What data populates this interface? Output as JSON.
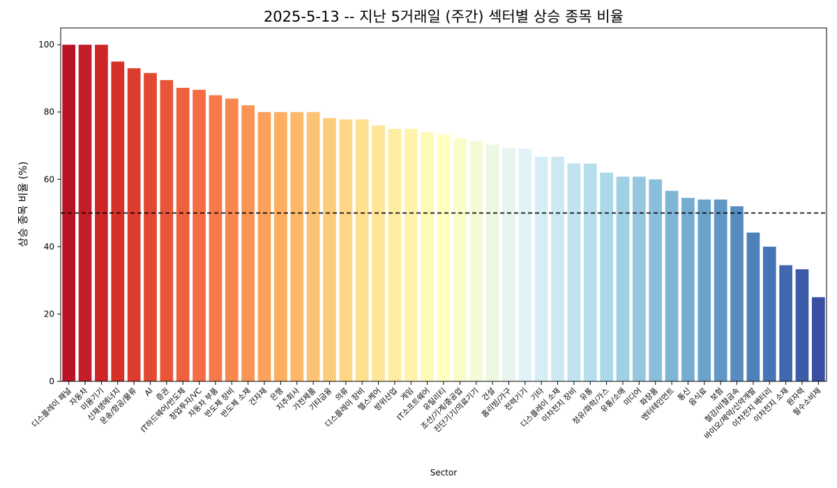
{
  "chart_data": {
    "type": "bar",
    "title": "2025-5-13 -- 지난 5거래일 (주간) 섹터별 상승 종목 비율",
    "xlabel": "Sector",
    "ylabel": "상승 종목 비율 (%)",
    "ylim": [
      0,
      105
    ],
    "yticks": [
      "0",
      "20",
      "40",
      "60",
      "80",
      "100"
    ],
    "reference_line": {
      "y": 50,
      "style": "dashed",
      "color": "#000000"
    },
    "grid": false,
    "colormap": "RdYlBu",
    "categories": [
      "디스플레이 패널",
      "자동차",
      "미용기기",
      "신재생에너지",
      "운송/항공/물류",
      "AI",
      "증권",
      "IT하드웨어/반도체",
      "창업투자/VC",
      "자동차 부품",
      "반도체 장비",
      "반도체 소재",
      "건자재",
      "은행",
      "지주회사",
      "가전제품",
      "기타금융",
      "의류",
      "디스플레이 장비",
      "헬스케어",
      "방위산업",
      "게임",
      "IT소프트웨어",
      "유틸리티",
      "조선/기계/중공업",
      "진단기기/의료기기",
      "건설",
      "홈리빙/가구",
      "전력기기",
      "기타",
      "디스플레이 소재",
      "이차전지 장비",
      "유통",
      "정유/화학/가스",
      "유통/소매",
      "미디어",
      "화장품",
      "엔터테인먼트",
      "통신",
      "음식료",
      "보험",
      "철강/비철금속",
      "바이오/제약/신약개발",
      "이차전지 배터리",
      "이차전지 소재",
      "원자력",
      "필수소비재"
    ],
    "values": [
      100,
      100,
      100,
      95,
      93,
      91.6,
      89.5,
      87.2,
      86.6,
      85,
      84,
      82,
      80,
      80,
      80,
      80,
      78.2,
      77.8,
      77.8,
      76,
      75,
      75,
      74,
      73.4,
      72.2,
      71.4,
      70.3,
      69.3,
      69.1,
      66.7,
      66.7,
      64.7,
      64.7,
      62,
      60.8,
      60.8,
      60,
      56.6,
      54.5,
      54,
      54,
      52,
      44.2,
      40,
      34.5,
      33.3,
      25
    ]
  }
}
